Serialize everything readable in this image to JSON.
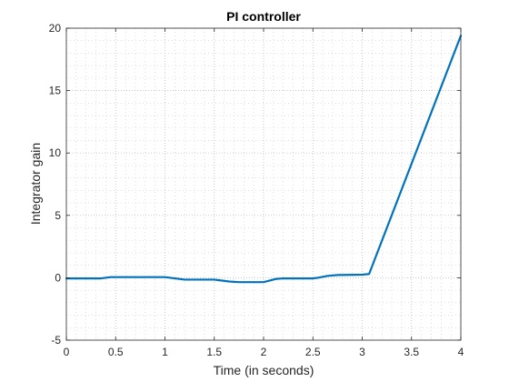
{
  "chart_data": {
    "type": "line",
    "title": "PI controller",
    "xlabel": "Time (in seconds)",
    "ylabel": "Integrator gain",
    "xlim": [
      0,
      4
    ],
    "ylim": [
      -5,
      20
    ],
    "xticks": [
      0,
      0.5,
      1,
      1.5,
      2,
      2.5,
      3,
      3.5,
      4
    ],
    "xtick_labels": [
      "0",
      "0.5",
      "1",
      "1.5",
      "2",
      "2.5",
      "3",
      "3.5",
      "4"
    ],
    "yticks": [
      -5,
      0,
      5,
      10,
      15,
      20
    ],
    "ytick_labels": [
      "-5",
      "0",
      "5",
      "10",
      "15",
      "20"
    ],
    "grid": true,
    "minor_grid": true,
    "series": [
      {
        "color": "#0072BD",
        "x": [
          0,
          0.35,
          0.45,
          1.0,
          1.1,
          1.2,
          1.5,
          1.55,
          1.65,
          1.75,
          2.0,
          2.05,
          2.12,
          2.2,
          2.5,
          2.55,
          2.65,
          2.75,
          3.0,
          3.07,
          4.0
        ],
        "y": [
          -0.05,
          -0.05,
          0.05,
          0.05,
          -0.05,
          -0.15,
          -0.15,
          -0.2,
          -0.3,
          -0.35,
          -0.35,
          -0.25,
          -0.1,
          -0.05,
          -0.05,
          0.0,
          0.15,
          0.22,
          0.25,
          0.3,
          19.4
        ]
      }
    ]
  }
}
